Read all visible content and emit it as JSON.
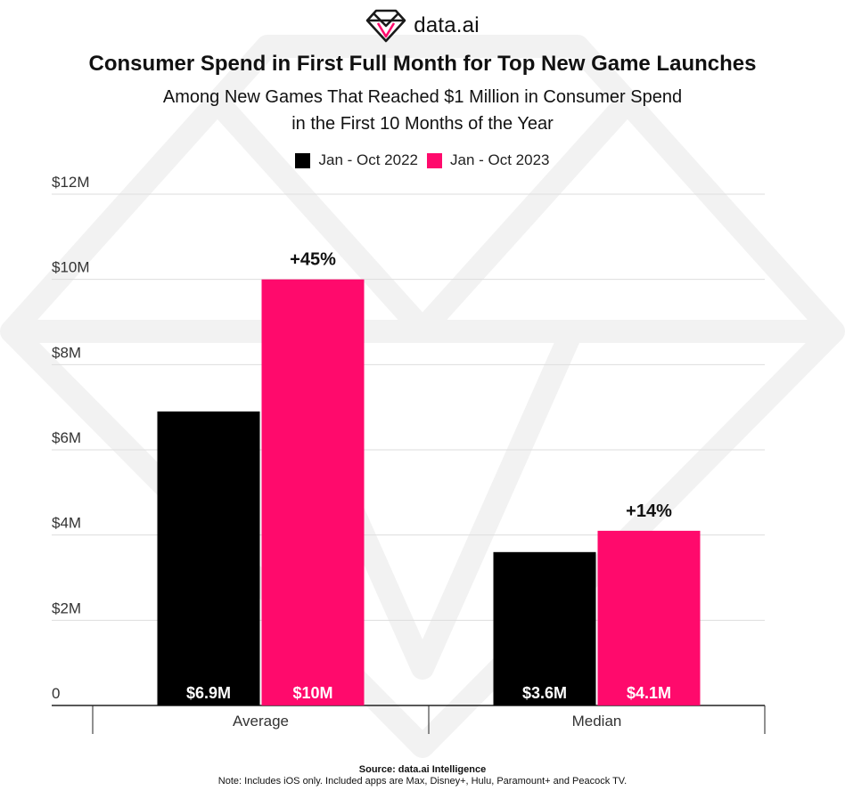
{
  "brand": {
    "name": "data.ai",
    "logo_icon": "diamond-icon"
  },
  "header": {
    "title": "Consumer Spend in First Full Month for Top New Game Launches",
    "subtitle": "Among New Games That Reached $1 Million in Consumer Spend in the First 10 Months of the Year"
  },
  "colors": {
    "series_2022": "#000000",
    "series_2023": "#ff0a6c",
    "grid": "#dddddd",
    "watermark": "#f2f2f2"
  },
  "chart_data": {
    "type": "bar",
    "title": "Consumer Spend in First Full Month for Top New Game Launches",
    "categories": [
      "Average",
      "Median"
    ],
    "series": [
      {
        "name": "Jan - Oct 2022",
        "values": [
          6.9,
          3.6
        ],
        "labels": [
          "$6.9M",
          "$3.6M"
        ]
      },
      {
        "name": "Jan - Oct 2023",
        "values": [
          10,
          4.1
        ],
        "labels": [
          "$10M",
          "$4.1M"
        ]
      }
    ],
    "annotations": [
      "+45%",
      "+14%"
    ],
    "y_ticks": [
      "0",
      "$2M",
      "$4M",
      "$6M",
      "$8M",
      "$10M",
      "$12M"
    ],
    "y_tick_values": [
      0,
      2,
      4,
      6,
      8,
      10,
      12
    ],
    "ylim": [
      0,
      12
    ],
    "grid": true,
    "legend_position": "top-center"
  },
  "footer": {
    "source": "Source: data.ai Intelligence",
    "note": "Note: Includes iOS only. Included apps are Max, Disney+, Hulu, Paramount+ and Peacock TV."
  }
}
